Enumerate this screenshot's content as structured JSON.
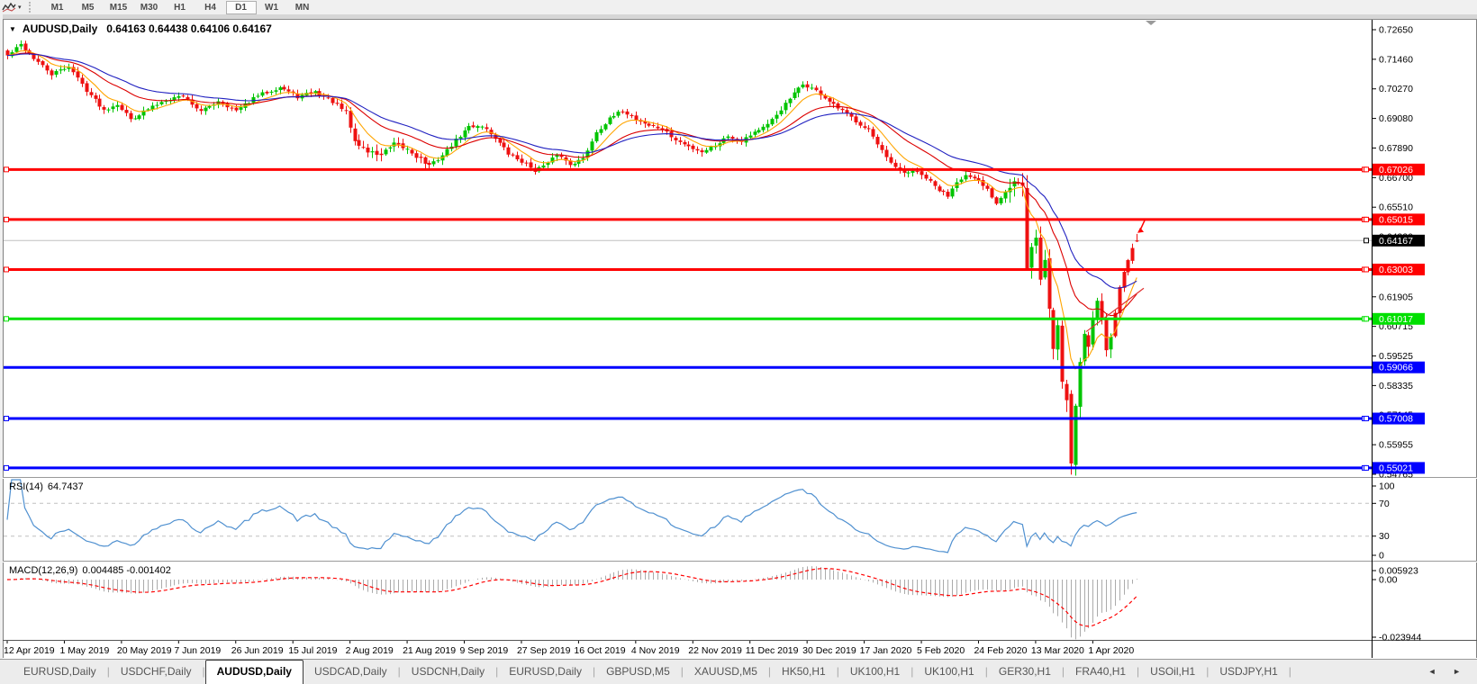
{
  "toolbar": {
    "timeframes": [
      "M1",
      "M5",
      "M15",
      "M30",
      "H1",
      "H4",
      "D1",
      "W1",
      "MN"
    ],
    "selected_timeframe": "D1",
    "indicators_icon": "zigzag-chart-icon"
  },
  "chart": {
    "title_symbol": "AUDUSD,Daily",
    "title_ohlc": "0.64163 0.64438 0.64106 0.64167"
  },
  "rsi": {
    "label": "RSI(14)",
    "value": "64.7437",
    "period": 14,
    "scale_labels": [
      "100",
      "70",
      "30",
      "0"
    ],
    "level_lines": [
      70,
      30
    ],
    "line_color": "#4f90d0"
  },
  "macd": {
    "label": "MACD(12,26,9)",
    "values": "0.004485 -0.001402",
    "fast": 12,
    "slow": 26,
    "signal": 9,
    "scale_max": "0.005923",
    "scale_zero": "0.00",
    "scale_min": "-0.023944",
    "histogram_color": "#ababab",
    "signal_color": "#ff0000"
  },
  "price_axis": {
    "ticks": [
      "0.72650",
      "0.71460",
      "0.70270",
      "0.69080",
      "0.67890",
      "0.66700",
      "0.65510",
      "0.64320",
      "0.61905",
      "0.60715",
      "0.59525",
      "0.58335",
      "0.57145",
      "0.55955",
      "0.54765"
    ]
  },
  "dates": [
    "12 Apr 2019",
    "1 May 2019",
    "20 May 2019",
    "7 Jun 2019",
    "26 Jun 2019",
    "15 Jul 2019",
    "2 Aug 2019",
    "21 Aug 2019",
    "9 Sep 2019",
    "27 Sep 2019",
    "16 Oct 2019",
    "4 Nov 2019",
    "22 Nov 2019",
    "11 Dec 2019",
    "30 Dec 2019",
    "17 Jan 2020",
    "5 Feb 2020",
    "24 Feb 2020",
    "13 Mar 2020",
    "1 Apr 2020"
  ],
  "bars_per_date_label": 13,
  "tabs": {
    "items": [
      "EURUSD,Daily",
      "USDCHF,Daily",
      "AUDUSD,Daily",
      "USDCAD,Daily",
      "USDCNH,Daily",
      "EURUSD,Daily",
      "GBPUSD,M5",
      "XAUUSD,M5",
      "HK50,H1",
      "UK100,H1",
      "UK100,H1",
      "GER30,H1",
      "FRA40,H1",
      "USOil,H1",
      "USDJPY,H1"
    ],
    "active_index": 2,
    "scroll_arrows": [
      "◄",
      "►"
    ]
  },
  "chart_data": {
    "type": "candlestick",
    "symbol": "AUDUSD",
    "timeframe": "Daily",
    "ohlc_display": {
      "open": "0.64163",
      "high": "0.64438",
      "low": "0.64106",
      "close": "0.64167"
    },
    "total_bars": 258,
    "bar_spacing_px": 4.88,
    "up_color": "#00C400",
    "down_color": "#EE1111",
    "close_keypoints": [
      [
        0,
        0.716
      ],
      [
        3,
        0.7205
      ],
      [
        6,
        0.715
      ],
      [
        10,
        0.7085
      ],
      [
        14,
        0.7118
      ],
      [
        18,
        0.7022
      ],
      [
        22,
        0.6942
      ],
      [
        25,
        0.6968
      ],
      [
        28,
        0.6905
      ],
      [
        32,
        0.6945
      ],
      [
        36,
        0.6985
      ],
      [
        40,
        0.7
      ],
      [
        44,
        0.6935
      ],
      [
        48,
        0.698
      ],
      [
        52,
        0.6938
      ],
      [
        57,
        0.7
      ],
      [
        62,
        0.7035
      ],
      [
        66,
        0.6995
      ],
      [
        70,
        0.7015
      ],
      [
        74,
        0.6975
      ],
      [
        77,
        0.693
      ],
      [
        79,
        0.6815
      ],
      [
        82,
        0.6775
      ],
      [
        85,
        0.6762
      ],
      [
        88,
        0.68
      ],
      [
        91,
        0.6785
      ],
      [
        94,
        0.6745
      ],
      [
        96,
        0.6715
      ],
      [
        99,
        0.676
      ],
      [
        102,
        0.682
      ],
      [
        105,
        0.6875
      ],
      [
        108,
        0.688
      ],
      [
        111,
        0.683
      ],
      [
        114,
        0.6765
      ],
      [
        117,
        0.6735
      ],
      [
        120,
        0.67
      ],
      [
        123,
        0.6725
      ],
      [
        125,
        0.6765
      ],
      [
        128,
        0.6725
      ],
      [
        131,
        0.6745
      ],
      [
        134,
        0.6855
      ],
      [
        137,
        0.6905
      ],
      [
        140,
        0.694
      ],
      [
        143,
        0.6905
      ],
      [
        146,
        0.688
      ],
      [
        149,
        0.6865
      ],
      [
        152,
        0.682
      ],
      [
        155,
        0.6795
      ],
      [
        158,
        0.6775
      ],
      [
        161,
        0.68
      ],
      [
        164,
        0.6838
      ],
      [
        167,
        0.682
      ],
      [
        170,
        0.6855
      ],
      [
        173,
        0.688
      ],
      [
        176,
        0.6945
      ],
      [
        179,
        0.7008
      ],
      [
        181,
        0.7045
      ],
      [
        183,
        0.703
      ],
      [
        185,
        0.7005
      ],
      [
        188,
        0.696
      ],
      [
        191,
        0.6925
      ],
      [
        194,
        0.6885
      ],
      [
        196,
        0.6865
      ],
      [
        198,
        0.68
      ],
      [
        200,
        0.6748
      ],
      [
        202,
        0.6708
      ],
      [
        204,
        0.6688
      ],
      [
        206,
        0.6698
      ],
      [
        209,
        0.6668
      ],
      [
        212,
        0.6618
      ],
      [
        214,
        0.6598
      ],
      [
        216,
        0.6658
      ],
      [
        218,
        0.6678
      ],
      [
        221,
        0.6652
      ],
      [
        223,
        0.6622
      ],
      [
        225,
        0.6568
      ],
      [
        227,
        0.6618
      ],
      [
        229,
        0.6658
      ],
      [
        231,
        0.6628
      ],
      [
        232,
        0.6305
      ],
      [
        233,
        0.6378
      ],
      [
        234,
        0.6442
      ],
      [
        235,
        0.6252
      ],
      [
        236,
        0.6338
      ],
      [
        237,
        0.6145
      ],
      [
        238,
        0.5982
      ],
      [
        239,
        0.6078
      ],
      [
        240,
        0.5852
      ],
      [
        241,
        0.5782
      ],
      [
        242,
        0.552
      ],
      [
        243,
        0.5768
      ],
      [
        244,
        0.5928
      ],
      [
        245,
        0.6052
      ],
      [
        246,
        0.5988
      ],
      [
        247,
        0.6098
      ],
      [
        248,
        0.6168
      ],
      [
        249,
        0.6102
      ],
      [
        250,
        0.5992
      ],
      [
        251,
        0.6052
      ],
      [
        252,
        0.6132
      ],
      [
        253,
        0.6222
      ],
      [
        254,
        0.6298
      ],
      [
        255,
        0.6332
      ],
      [
        256,
        0.6388
      ],
      [
        257,
        0.64167
      ]
    ],
    "forced_bars": {
      "232": {
        "o": 0.6628,
        "h": 0.668,
        "l": 0.6295,
        "c": 0.6305
      },
      "242": {
        "o": 0.58,
        "h": 0.5815,
        "l": 0.5475,
        "c": 0.552
      },
      "257": {
        "o": 0.64163,
        "h": 0.64438,
        "l": 0.64106,
        "c": 0.64167
      }
    },
    "red_body_segments": [
      [
        252,
        257
      ]
    ],
    "high_vol_segments": [
      [
        77,
        96,
        1.6
      ],
      [
        228,
        251,
        3.2
      ],
      [
        252,
        257,
        1.2
      ]
    ],
    "moving_averages": [
      {
        "name": "ma-fast",
        "type": "ema",
        "period": 8,
        "color": "#FFA500"
      },
      {
        "name": "ma-medium",
        "type": "ema",
        "period": 21,
        "color": "#DC0000"
      },
      {
        "name": "ma-slow",
        "type": "ema",
        "period": 34,
        "color": "#2020C0"
      }
    ],
    "horizontal_lines": [
      {
        "price": 0.67026,
        "label": "0.67026",
        "color": "#FF0000",
        "squares": true
      },
      {
        "price": 0.65015,
        "label": "0.65015",
        "color": "#FF0000",
        "squares": true
      },
      {
        "price": 0.63003,
        "label": "0.63003",
        "color": "#FF0000",
        "squares": true
      },
      {
        "price": 0.61017,
        "label": "0.61017",
        "color": "#00E000",
        "squares": true
      },
      {
        "price": 0.59066,
        "label": "0.59066",
        "color": "#0000FF",
        "squares": false
      },
      {
        "price": 0.57008,
        "label": "0.57008",
        "color": "#0000FF",
        "squares": true
      },
      {
        "price": 0.55021,
        "label": "0.55021",
        "color": "#0000FF",
        "squares": true
      }
    ],
    "trend_line": {
      "bar1": 245.5,
      "price1": 0.605,
      "bar2": 258.6,
      "price2": 0.6225,
      "color": "#E03030"
    },
    "arrow_object": {
      "bar": 258,
      "price": 0.6462,
      "color": "#FF0000",
      "direction": "down"
    },
    "current_price": {
      "value": 0.64167,
      "label": "0.64167",
      "line_color": "#C0C0C0",
      "label_bg": "#000000"
    }
  }
}
